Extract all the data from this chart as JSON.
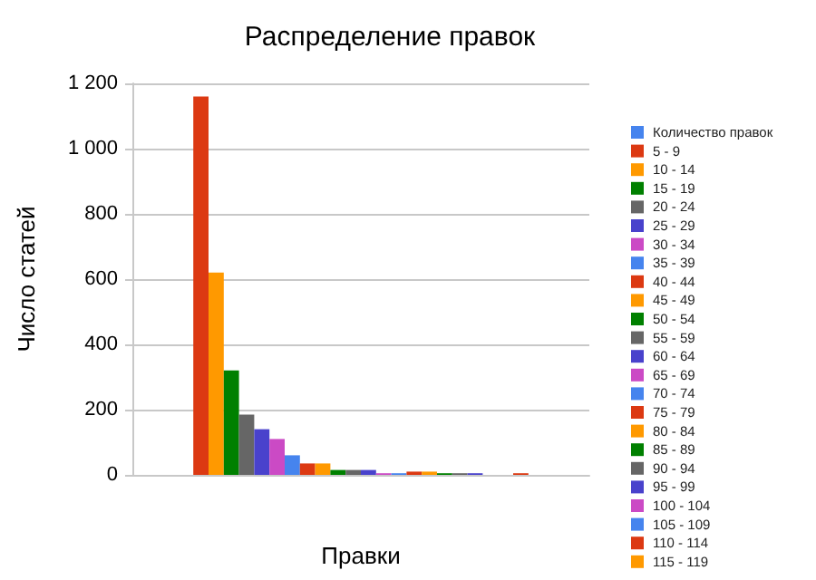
{
  "chart_data": {
    "type": "bar",
    "title": "Распределение правок",
    "xlabel": "Правки",
    "ylabel": "Число статей",
    "categories": [
      null
    ],
    "series": [
      {
        "name": "Количество правок",
        "color": "#4684ee",
        "values": [
          0
        ]
      },
      {
        "name": "5 - 9",
        "color": "#dc3912",
        "values": [
          1160
        ]
      },
      {
        "name": "10 - 14",
        "color": "#ff9900",
        "values": [
          620
        ]
      },
      {
        "name": "15 - 19",
        "color": "#008000",
        "values": [
          320
        ]
      },
      {
        "name": "20 - 24",
        "color": "#666666",
        "values": [
          185
        ]
      },
      {
        "name": "25 - 29",
        "color": "#4942cc",
        "values": [
          140
        ]
      },
      {
        "name": "30 - 34",
        "color": "#cb4ac5",
        "values": [
          110
        ]
      },
      {
        "name": "35 - 39",
        "color": "#4684ee",
        "values": [
          60
        ]
      },
      {
        "name": "40 - 44",
        "color": "#dc3912",
        "values": [
          35
        ]
      },
      {
        "name": "45 - 49",
        "color": "#ff9900",
        "values": [
          35
        ]
      },
      {
        "name": "50 - 54",
        "color": "#008000",
        "values": [
          15
        ]
      },
      {
        "name": "55 - 59",
        "color": "#666666",
        "values": [
          15
        ]
      },
      {
        "name": "60 - 64",
        "color": "#4942cc",
        "values": [
          15
        ]
      },
      {
        "name": "65 - 69",
        "color": "#cb4ac5",
        "values": [
          5
        ]
      },
      {
        "name": "70 - 74",
        "color": "#4684ee",
        "values": [
          5
        ]
      },
      {
        "name": "75 - 79",
        "color": "#dc3912",
        "values": [
          10
        ]
      },
      {
        "name": "80 - 84",
        "color": "#ff9900",
        "values": [
          10
        ]
      },
      {
        "name": "85 - 89",
        "color": "#008000",
        "values": [
          5
        ]
      },
      {
        "name": "90 - 94",
        "color": "#666666",
        "values": [
          5
        ]
      },
      {
        "name": "95 - 99",
        "color": "#4942cc",
        "values": [
          5
        ]
      },
      {
        "name": "100 - 104",
        "color": "#cb4ac5",
        "values": [
          0
        ]
      },
      {
        "name": "105 - 109",
        "color": "#4684ee",
        "values": [
          0
        ]
      },
      {
        "name": "110 - 114",
        "color": "#dc3912",
        "values": [
          5
        ]
      },
      {
        "name": "115 - 119",
        "color": "#ff9900",
        "values": [
          0
        ]
      }
    ],
    "ylim": [
      0,
      1200
    ],
    "yticks": [
      0,
      200,
      400,
      600,
      800,
      {
        "value": 1000,
        "label": "1 000"
      },
      {
        "value": 1200,
        "label": "1 200"
      }
    ],
    "grid": "y",
    "legend": "right"
  }
}
